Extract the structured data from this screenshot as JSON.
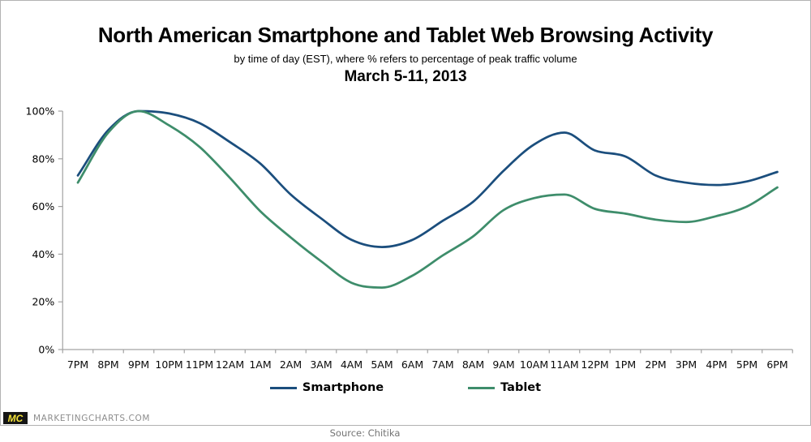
{
  "title": "North American Smartphone and Tablet Web Browsing Activity",
  "subtitle": "by time of day (EST), where % refers to percentage of peak traffic volume",
  "date_line": "March 5-11, 2013",
  "source": "Source: Chitika",
  "branding": {
    "logo_text": "MC",
    "site": "MARKETINGCHARTS.COM",
    "logo_bg": "#151515",
    "logo_color": "#f2e139"
  },
  "chart_data": {
    "type": "line",
    "title": "North American Smartphone and Tablet Web Browsing Activity",
    "xlabel": "time of day (EST)",
    "ylabel": "% of peak traffic volume",
    "x": [
      "7PM",
      "8PM",
      "9PM",
      "10PM",
      "11PM",
      "12AM",
      "1AM",
      "2AM",
      "3AM",
      "4AM",
      "5AM",
      "6AM",
      "7AM",
      "8AM",
      "9AM",
      "10AM",
      "11AM",
      "12PM",
      "1PM",
      "2PM",
      "3PM",
      "4PM",
      "5PM",
      "6PM"
    ],
    "series": [
      {
        "name": "Smartphone",
        "color": "#1B4E7D",
        "values": [
          73,
          92,
          100,
          99,
          95,
          87,
          78,
          65,
          55,
          46,
          43,
          46,
          54,
          62,
          75,
          86,
          91,
          83.5,
          81,
          73,
          70,
          69,
          70.5,
          74.5
        ]
      },
      {
        "name": "Tablet",
        "color": "#3E8D6B",
        "values": [
          70,
          91,
          100,
          94,
          85,
          72,
          58,
          47,
          37,
          28,
          26,
          31,
          39.5,
          47.5,
          58.5,
          63.5,
          65,
          59,
          57,
          54.5,
          53.5,
          56,
          60,
          68
        ]
      }
    ],
    "ylim": [
      0,
      100
    ],
    "y_ticks": [
      "0%",
      "20%",
      "40%",
      "60%",
      "80%",
      "100%"
    ],
    "grid": false,
    "legend_position": "bottom",
    "axis_color": "#a3a3a3"
  }
}
